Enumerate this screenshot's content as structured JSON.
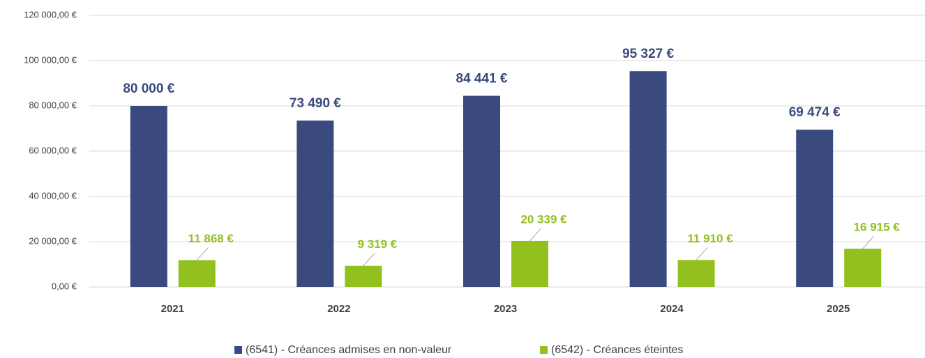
{
  "chart_data": {
    "type": "bar",
    "categories": [
      "2021",
      "2022",
      "2023",
      "2024",
      "2025"
    ],
    "series": [
      {
        "name": "(6541) - Créances admises en non-valeur",
        "color": "#3b4a7e",
        "values": [
          80000,
          73490,
          84441,
          95327,
          69474
        ],
        "value_labels": [
          "80 000 €",
          "73 490 €",
          "84 441 €",
          "95 327 €",
          "69 474 €"
        ]
      },
      {
        "name": "(6542) - Créances éteintes",
        "color": "#92c01f",
        "values": [
          11868,
          9319,
          20339,
          11910,
          16915
        ],
        "value_labels": [
          "11 868 €",
          "9 319 €",
          "20 339 €",
          "11 910 €",
          "16 915 €"
        ]
      }
    ],
    "ylim": [
      0,
      120000
    ],
    "yticks": [
      {
        "value": 0,
        "label": "0,00 €"
      },
      {
        "value": 20000,
        "label": "20 000,00 €"
      },
      {
        "value": 40000,
        "label": "40 000,00 €"
      },
      {
        "value": 60000,
        "label": "60 000,00 €"
      },
      {
        "value": 80000,
        "label": "80 000,00 €"
      },
      {
        "value": 100000,
        "label": "100 000,00 €"
      },
      {
        "value": 120000,
        "label": "120 000,00 €"
      }
    ],
    "grid": true,
    "legend": "bottom"
  }
}
